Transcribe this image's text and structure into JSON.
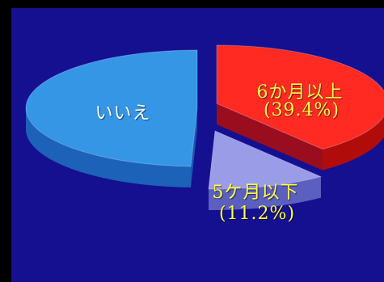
{
  "chart_data": {
    "type": "pie",
    "style": "3d-exploded",
    "slices": [
      {
        "key": "over6",
        "label": "6か月以上",
        "value_text": "(39.4%)",
        "value": 39.4,
        "color": "#ff2a22",
        "side": "#b00d0a",
        "text_color": "#ffff44"
      },
      {
        "key": "under5",
        "label": "5ケ月以下",
        "value_text": "(11.2%)",
        "value": 11.2,
        "color": "#9a9ce8",
        "side": "#5b5fc0",
        "text_color": "#ffff44"
      },
      {
        "key": "no",
        "label": "いいえ",
        "value_text": "",
        "value": 49.4,
        "color": "#3596e6",
        "side": "#1b62b8",
        "text_color": "#ffffff"
      }
    ]
  },
  "colors": {
    "background": "#141090",
    "frame": "#000000"
  }
}
